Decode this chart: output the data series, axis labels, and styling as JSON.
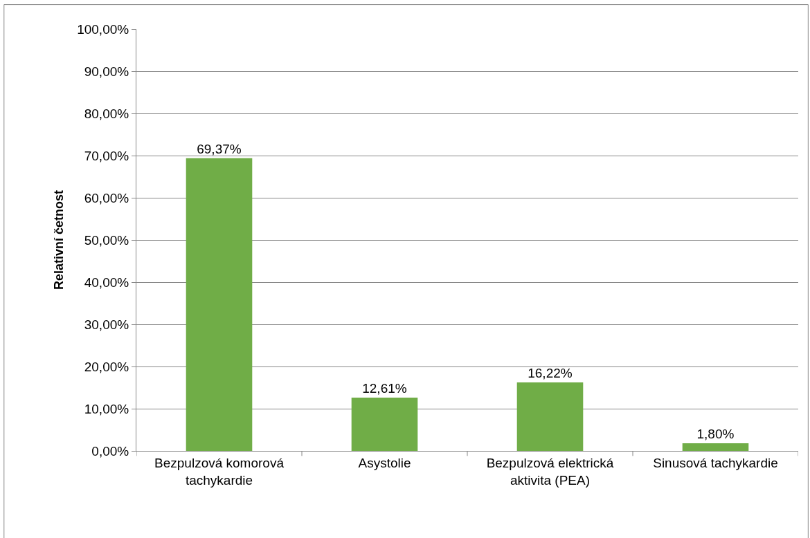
{
  "chart_data": {
    "type": "bar",
    "ylabel": "Relativní četnost",
    "categories": [
      "Bezpulzová komorová tachykardie",
      "Asystolie",
      "Bezpulzová elektrická aktivita (PEA)",
      "Sinusová tachykardie"
    ],
    "values": [
      69.37,
      12.61,
      16.22,
      1.8
    ],
    "value_labels": [
      "69,37%",
      "12,61%",
      "16,22%",
      "1,80%"
    ],
    "color": "#70ad47",
    "ylim": [
      0,
      100
    ],
    "yticks": [
      {
        "value": 0,
        "label": "0,00%"
      },
      {
        "value": 10,
        "label": "10,00%"
      },
      {
        "value": 20,
        "label": "20,00%"
      },
      {
        "value": 30,
        "label": "30,00%"
      },
      {
        "value": 40,
        "label": "40,00%"
      },
      {
        "value": 50,
        "label": "50,00%"
      },
      {
        "value": 60,
        "label": "60,00%"
      },
      {
        "value": 70,
        "label": "70,00%"
      },
      {
        "value": 80,
        "label": "80,00%"
      },
      {
        "value": 90,
        "label": "90,00%"
      },
      {
        "value": 100,
        "label": "100,00%"
      }
    ],
    "grid": "y"
  }
}
